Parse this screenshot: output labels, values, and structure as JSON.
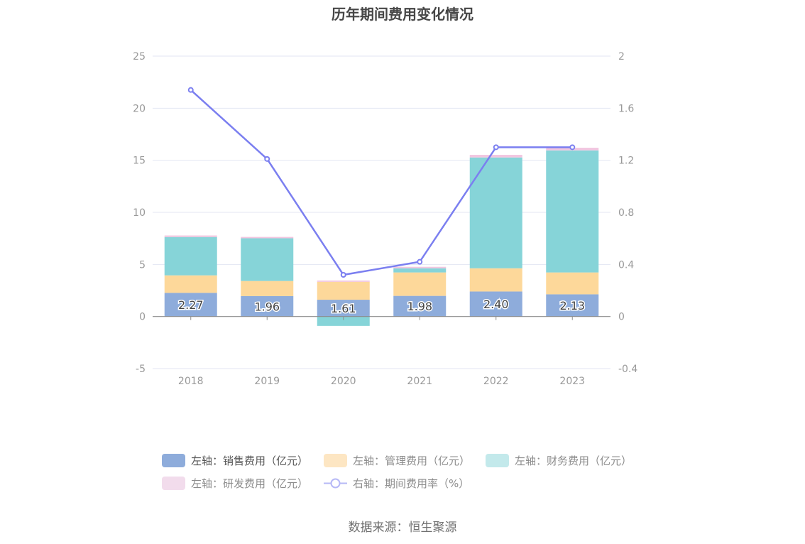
{
  "title": "历年期间费用变化情况",
  "source": "数据来源：恒生聚源",
  "colors": {
    "sales": "#8eacdb",
    "mgmt": "#fdd89a",
    "finance": "#86d4d8",
    "rnd": "#f2c6e0",
    "rate": "#7b7ff0"
  },
  "legend": [
    {
      "label": "左轴：销售费用（亿元）",
      "color": "#8eacdb",
      "type": "box",
      "active": true
    },
    {
      "label": "左轴：管理费用（亿元）",
      "color": "#fde6c3",
      "type": "box",
      "active": false
    },
    {
      "label": "左轴：财务费用（亿元）",
      "color": "#c3e9eb",
      "type": "box",
      "active": false
    },
    {
      "label": "左轴：研发费用（亿元）",
      "color": "#f2dcec",
      "type": "box",
      "active": false
    },
    {
      "label": "右轴：期间费用率（%）",
      "color": "#b6b8f6",
      "type": "line",
      "active": false
    }
  ],
  "chart_data": {
    "type": "bar",
    "title": "历年期间费用变化情况",
    "categories": [
      "2018",
      "2019",
      "2020",
      "2021",
      "2022",
      "2023"
    ],
    "stacked": true,
    "series": [
      {
        "name": "左轴：销售费用（亿元）",
        "axis": "left",
        "type": "bar",
        "values": [
          2.27,
          1.96,
          1.61,
          1.98,
          2.4,
          2.13
        ],
        "labels_shown": true
      },
      {
        "name": "左轴：管理费用（亿元）",
        "axis": "left",
        "type": "bar",
        "values": [
          1.68,
          1.45,
          1.72,
          2.25,
          2.23,
          2.1
        ]
      },
      {
        "name": "左轴：财务费用（亿元）",
        "axis": "left",
        "type": "bar",
        "values": [
          3.68,
          4.1,
          -0.9,
          0.4,
          10.64,
          11.72
        ]
      },
      {
        "name": "左轴：研发费用（亿元）",
        "axis": "left",
        "type": "bar",
        "values": [
          0.15,
          0.13,
          0.12,
          0.14,
          0.25,
          0.25
        ]
      },
      {
        "name": "右轴：期间费用率（%）",
        "axis": "right",
        "type": "line",
        "values": [
          1.74,
          1.21,
          0.32,
          0.42,
          1.3,
          1.3
        ]
      }
    ],
    "left_axis": {
      "ticks": [
        "25",
        "20",
        "15",
        "10",
        "5",
        "0",
        "-5"
      ],
      "ylim": [
        -5,
        25
      ]
    },
    "right_axis": {
      "ticks": [
        "2",
        "1.6",
        "1.2",
        "0.8",
        "0.4",
        "0",
        "-0.4"
      ],
      "ylim": [
        -0.4,
        2
      ]
    },
    "xlabel": "",
    "ylabel": "",
    "grid": true,
    "legend_position": "bottom"
  }
}
